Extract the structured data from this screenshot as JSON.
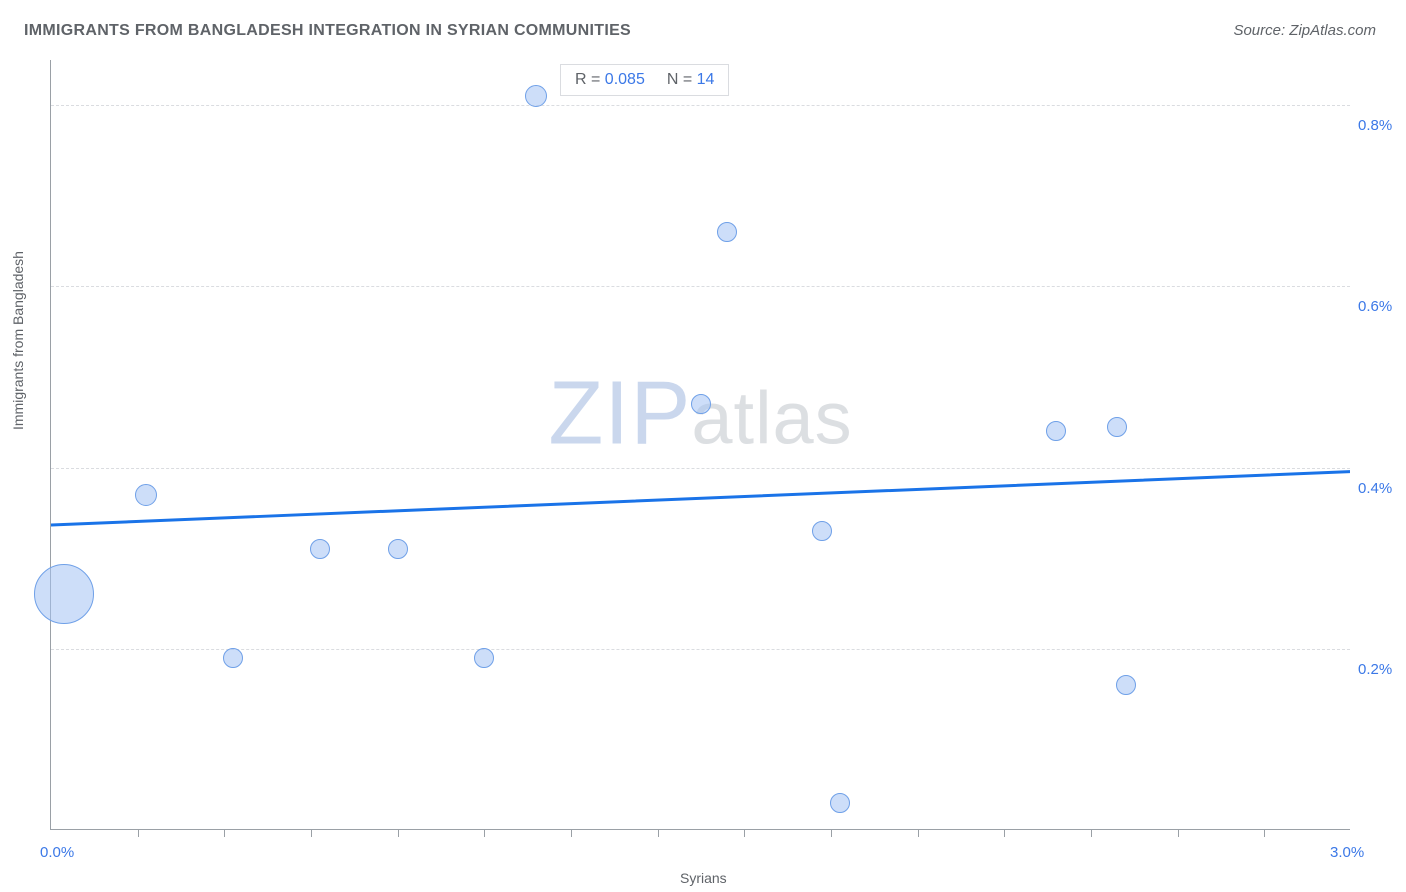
{
  "title": "IMMIGRANTS FROM BANGLADESH INTEGRATION IN SYRIAN COMMUNITIES",
  "source": "Source: ZipAtlas.com",
  "chart": {
    "type": "scatter",
    "xlabel": "Syrians",
    "ylabel": "Immigrants from Bangladesh",
    "xlim": [
      0.0,
      3.0
    ],
    "ylim": [
      0.0,
      0.85
    ],
    "x_tick_label_min": "0.0%",
    "x_tick_label_max": "3.0%",
    "y_tick_labels": [
      "0.2%",
      "0.4%",
      "0.6%",
      "0.8%"
    ],
    "y_tick_values": [
      0.2,
      0.4,
      0.6,
      0.8
    ],
    "x_minor_ticks": [
      0.2,
      0.4,
      0.6,
      0.8,
      1.0,
      1.2,
      1.4,
      1.6,
      1.8,
      2.0,
      2.2,
      2.4,
      2.6,
      2.8
    ],
    "grid_color": "#dadce0",
    "axis_color": "#9aa0a6",
    "background_color": "#ffffff",
    "bubble_fill": "rgba(164,195,244,0.55)",
    "bubble_stroke": "#6fa0e8",
    "trend_color": "#1a73e8",
    "trend_width": 3,
    "trend": {
      "y_at_xmin": 0.336,
      "y_at_xmax": 0.395
    },
    "title_fontsize": 16,
    "label_fontsize": 14,
    "ticklabel_fontsize": 15,
    "ticklabel_color": "#3b78e7",
    "points": [
      {
        "x": 0.03,
        "y": 0.26,
        "r": 30
      },
      {
        "x": 0.22,
        "y": 0.37,
        "r": 11
      },
      {
        "x": 0.42,
        "y": 0.19,
        "r": 10
      },
      {
        "x": 0.62,
        "y": 0.31,
        "r": 10
      },
      {
        "x": 0.8,
        "y": 0.31,
        "r": 10
      },
      {
        "x": 1.0,
        "y": 0.19,
        "r": 10
      },
      {
        "x": 1.12,
        "y": 0.81,
        "r": 11
      },
      {
        "x": 1.5,
        "y": 0.47,
        "r": 10
      },
      {
        "x": 1.56,
        "y": 0.66,
        "r": 10
      },
      {
        "x": 1.78,
        "y": 0.33,
        "r": 10
      },
      {
        "x": 1.82,
        "y": 0.03,
        "r": 10
      },
      {
        "x": 2.32,
        "y": 0.44,
        "r": 10
      },
      {
        "x": 2.46,
        "y": 0.445,
        "r": 10
      },
      {
        "x": 2.48,
        "y": 0.16,
        "r": 10
      }
    ],
    "badge": {
      "r_label": "R =",
      "r_value": "0.085",
      "n_label": "N =",
      "n_value": "14"
    },
    "watermark": {
      "big": "ZIP",
      "rest": "atlas"
    }
  }
}
